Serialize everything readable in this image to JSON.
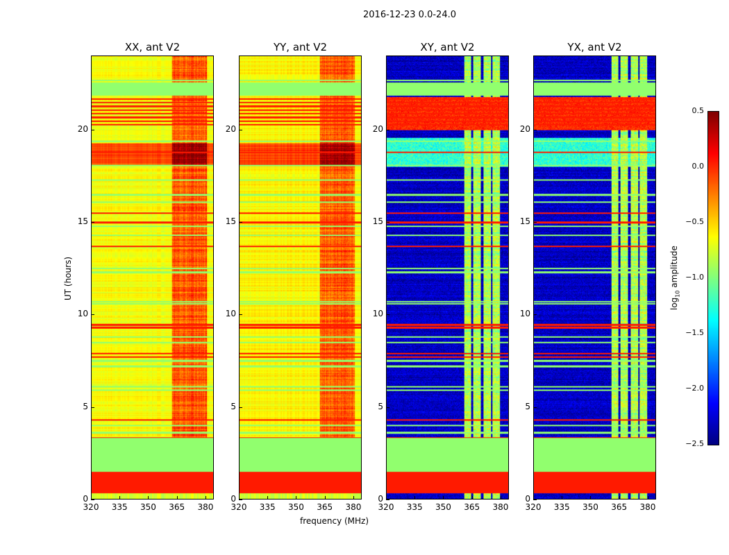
{
  "suptitle": "2016-12-23 0.0-24.0",
  "xlabel": "frequency (MHz)",
  "ylabel": "UT (hours)",
  "colorbar": {
    "label_prefix": "log",
    "label_sub": "10",
    "label_suffix": " amplitude",
    "ticks": [
      "0.5",
      "0.0",
      "−0.5",
      "−1.0",
      "−1.5",
      "−2.0",
      "−2.5"
    ],
    "tick_values": [
      0.5,
      0,
      -0.5,
      -1,
      -1.5,
      -2,
      -2.5
    ],
    "range": [
      -2.5,
      0.5
    ],
    "colormap": "jet"
  },
  "chart_data": {
    "type": "heatmap",
    "title": "2016-12-23 0.0-24.0",
    "xlabel": "frequency (MHz)",
    "ylabel": "UT (hours)",
    "xlim": [
      320,
      384.4
    ],
    "ylim": [
      0,
      24
    ],
    "xticks": [
      320,
      335,
      350,
      365,
      380
    ],
    "yticks": [
      0,
      5,
      10,
      15,
      20
    ],
    "xtick_labels": [
      "320",
      "335",
      "350",
      "365",
      "380"
    ],
    "ytick_labels": [
      "0",
      "5",
      "10",
      "15",
      "20"
    ],
    "panels": [
      {
        "title": "XX, ant V2",
        "kind": "parallel",
        "base": -0.65,
        "strong_band": [
          362.5,
          381
        ],
        "strong_value": -0.15
      },
      {
        "title": "YY, ant V2",
        "kind": "parallel",
        "base": -0.6,
        "strong_band": [
          362.5,
          381
        ],
        "strong_value": -0.15
      },
      {
        "title": "XY, ant V2",
        "kind": "cross",
        "base": -2.3,
        "columns": [
          [
            361.1,
            364.7
          ],
          [
            365.8,
            369.8
          ],
          [
            371,
            375
          ],
          [
            376,
            380
          ]
        ],
        "column_value": -0.85
      },
      {
        "title": "YX, ant V2",
        "kind": "cross",
        "base": -2.3,
        "columns": [
          [
            361.1,
            364.7
          ],
          [
            365.8,
            369.8
          ],
          [
            371,
            375
          ],
          [
            376,
            380
          ]
        ],
        "column_value": -0.85
      }
    ],
    "flagged_bands": [
      {
        "t": [
          0.3,
          1.5
        ],
        "value": 0.05
      },
      {
        "t": [
          1.5,
          3.3
        ],
        "value": -0.95
      },
      {
        "t": [
          21.9,
          22.6
        ],
        "value": -0.95
      }
    ],
    "red_lines": [
      3.3,
      4.3,
      7.7,
      7.9,
      9.3,
      9.45,
      13.7,
      15.0,
      15.5,
      18.8,
      20.3,
      20.5,
      20.7,
      20.9,
      21.1,
      21.3,
      21.5,
      21.7
    ],
    "green_lines": [
      3.6,
      4.0,
      5.9,
      6.1,
      7.2,
      7.5,
      8.5,
      8.8,
      10.6,
      10.7,
      12.3,
      12.5,
      14.3,
      14.8,
      16.1,
      16.5,
      17.3,
      18.1,
      19.4,
      22.7
    ],
    "cross_active_band": {
      "t": [
        18.0,
        19.6
      ],
      "value": -1.25
    }
  }
}
